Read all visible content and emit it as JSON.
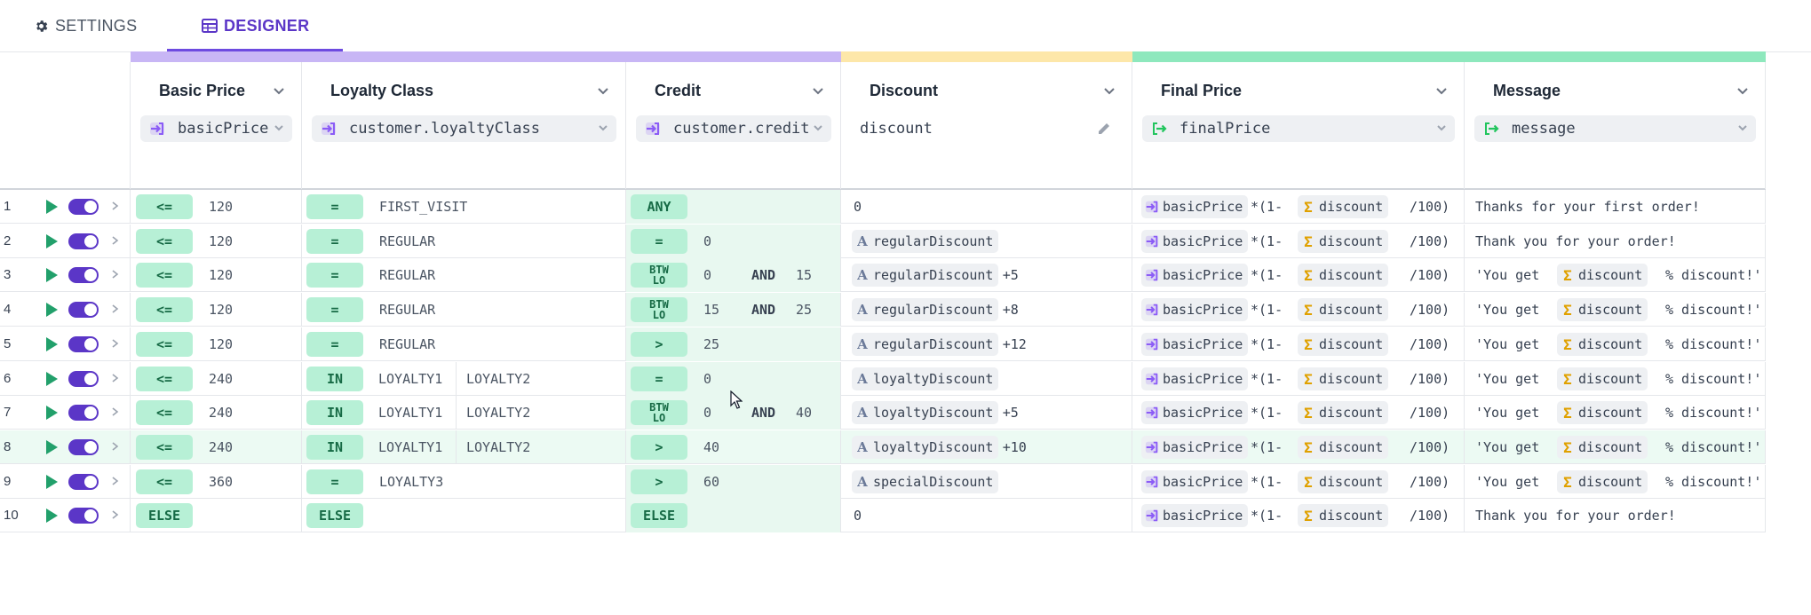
{
  "tabs": [
    {
      "label": "SETTINGS",
      "icon": "gear-icon",
      "active": false
    },
    {
      "label": "DESIGNER",
      "icon": "table-icon",
      "active": true
    }
  ],
  "colors": {
    "accent": "#6d4ae0",
    "input_bar": "#c8b6f5",
    "intermediate_bar": "#fde7a9",
    "output_bar": "#8ee8bd",
    "condition_pill": "#b7f0d6",
    "credit_bg": "#e8f8f0",
    "highlight_row": "#ecfaf3"
  },
  "columns": [
    {
      "name": "Basic Price",
      "kind": "input",
      "expr": "basicPrice",
      "expr_icon": "input-arrow-icon"
    },
    {
      "name": "Loyalty Class",
      "kind": "input",
      "expr": "customer.loyaltyClass",
      "expr_icon": "input-arrow-icon"
    },
    {
      "name": "Credit",
      "kind": "input",
      "expr": "customer.credit",
      "expr_icon": "input-arrow-icon"
    },
    {
      "name": "Discount",
      "kind": "intermediate",
      "expr": "discount",
      "expr_icon": "pencil-icon"
    },
    {
      "name": "Final Price",
      "kind": "output",
      "expr": "finalPrice",
      "expr_icon": "output-arrow-icon"
    },
    {
      "name": "Message",
      "kind": "output",
      "expr": "message",
      "expr_icon": "output-arrow-icon"
    }
  ],
  "rows": [
    {
      "num": "1",
      "price_op": "<=",
      "price": "120",
      "loyalty_op": "=",
      "loyalty": [
        "FIRST_VISIT"
      ],
      "credit_op": "ANY",
      "credit": [],
      "discount": {
        "type": "text",
        "value": "0"
      },
      "final": {
        "var": "basicPrice",
        "mid": "*(1-",
        "var2": "discount",
        "end": "/100)"
      },
      "message": {
        "type": "text",
        "value": "Thanks for your first order!"
      }
    },
    {
      "num": "2",
      "price_op": "<=",
      "price": "120",
      "loyalty_op": "=",
      "loyalty": [
        "REGULAR"
      ],
      "credit_op": "=",
      "credit": [
        "0"
      ],
      "discount": {
        "type": "var",
        "value": "regularDiscount",
        "suffix": ""
      },
      "final": {
        "var": "basicPrice",
        "mid": "*(1-",
        "var2": "discount",
        "end": "/100)"
      },
      "message": {
        "type": "text",
        "value": "Thank you for your order!"
      }
    },
    {
      "num": "3",
      "price_op": "<=",
      "price": "120",
      "loyalty_op": "=",
      "loyalty": [
        "REGULAR"
      ],
      "credit_op": "BTW LO",
      "credit": [
        "0",
        "AND",
        "15"
      ],
      "discount": {
        "type": "var",
        "value": "regularDiscount",
        "suffix": "+5"
      },
      "final": {
        "var": "basicPrice",
        "mid": "*(1-",
        "var2": "discount",
        "end": "/100)"
      },
      "message": {
        "type": "tmpl",
        "pre": "'You get",
        "var": "discount",
        "post": "% discount!'"
      }
    },
    {
      "num": "4",
      "price_op": "<=",
      "price": "120",
      "loyalty_op": "=",
      "loyalty": [
        "REGULAR"
      ],
      "credit_op": "BTW LO",
      "credit": [
        "15",
        "AND",
        "25"
      ],
      "discount": {
        "type": "var",
        "value": "regularDiscount",
        "suffix": "+8"
      },
      "final": {
        "var": "basicPrice",
        "mid": "*(1-",
        "var2": "discount",
        "end": "/100)"
      },
      "message": {
        "type": "tmpl",
        "pre": "'You get",
        "var": "discount",
        "post": "% discount!'"
      }
    },
    {
      "num": "5",
      "price_op": "<=",
      "price": "120",
      "loyalty_op": "=",
      "loyalty": [
        "REGULAR"
      ],
      "credit_op": ">",
      "credit": [
        "25"
      ],
      "discount": {
        "type": "var",
        "value": "regularDiscount",
        "suffix": "+12"
      },
      "final": {
        "var": "basicPrice",
        "mid": "*(1-",
        "var2": "discount",
        "end": "/100)"
      },
      "message": {
        "type": "tmpl",
        "pre": "'You get",
        "var": "discount",
        "post": "% discount!'"
      }
    },
    {
      "num": "6",
      "price_op": "<=",
      "price": "240",
      "loyalty_op": "IN",
      "loyalty": [
        "LOYALTY1",
        "LOYALTY2"
      ],
      "credit_op": "=",
      "credit": [
        "0"
      ],
      "discount": {
        "type": "var",
        "value": "loyaltyDiscount",
        "suffix": ""
      },
      "final": {
        "var": "basicPrice",
        "mid": "*(1-",
        "var2": "discount",
        "end": "/100)"
      },
      "message": {
        "type": "tmpl",
        "pre": "'You get",
        "var": "discount",
        "post": "% discount!'"
      }
    },
    {
      "num": "7",
      "price_op": "<=",
      "price": "240",
      "loyalty_op": "IN",
      "loyalty": [
        "LOYALTY1",
        "LOYALTY2"
      ],
      "credit_op": "BTW LO",
      "credit": [
        "0",
        "AND",
        "40"
      ],
      "discount": {
        "type": "var",
        "value": "loyaltyDiscount",
        "suffix": "+5"
      },
      "final": {
        "var": "basicPrice",
        "mid": "*(1-",
        "var2": "discount",
        "end": "/100)"
      },
      "message": {
        "type": "tmpl",
        "pre": "'You get",
        "var": "discount",
        "post": "% discount!'"
      }
    },
    {
      "num": "8",
      "price_op": "<=",
      "price": "240",
      "loyalty_op": "IN",
      "loyalty": [
        "LOYALTY1",
        "LOYALTY2"
      ],
      "credit_op": ">",
      "credit": [
        "40"
      ],
      "discount": {
        "type": "var",
        "value": "loyaltyDiscount",
        "suffix": "+10"
      },
      "final": {
        "var": "basicPrice",
        "mid": "*(1-",
        "var2": "discount",
        "end": "/100)"
      },
      "message": {
        "type": "tmpl",
        "pre": "'You get",
        "var": "discount",
        "post": "% discount!'"
      },
      "highlighted": true
    },
    {
      "num": "9",
      "price_op": "<=",
      "price": "360",
      "loyalty_op": "=",
      "loyalty": [
        "LOYALTY3"
      ],
      "credit_op": ">",
      "credit": [
        "60"
      ],
      "discount": {
        "type": "var",
        "value": "specialDiscount",
        "suffix": ""
      },
      "final": {
        "var": "basicPrice",
        "mid": "*(1-",
        "var2": "discount",
        "end": "/100)"
      },
      "message": {
        "type": "tmpl",
        "pre": "'You get",
        "var": "discount",
        "post": "% discount!'"
      }
    },
    {
      "num": "10",
      "price_op": "ELSE",
      "price": "",
      "loyalty_op": "ELSE",
      "loyalty": [],
      "credit_op": "ELSE",
      "credit": [],
      "discount": {
        "type": "text",
        "value": "0"
      },
      "final": {
        "var": "basicPrice",
        "mid": "*(1-",
        "var2": "discount",
        "end": "/100)"
      },
      "message": {
        "type": "text",
        "value": "Thank you for your order!"
      }
    }
  ]
}
